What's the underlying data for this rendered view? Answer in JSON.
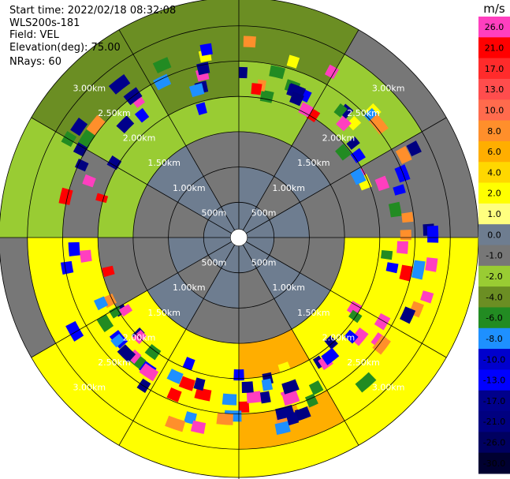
{
  "header": {
    "start_time": "Start time: 2022/02/18 08:32:08",
    "instrument": "WLS200s-181",
    "field": "Field: VEL",
    "elevation": "Elevation(deg): 75.00",
    "nrays": "NRays: 60"
  },
  "chart_data": {
    "type": "heatmap",
    "projection": "polar-ppi",
    "field": "VEL",
    "units": "m/s",
    "elevation_deg": 75.0,
    "n_rays": 60,
    "max_range_km": 3.4,
    "range_ring_labels": [
      "500m",
      "1.00km",
      "1.50km",
      "2.00km",
      "2.50km",
      "3.00km"
    ],
    "range_ring_values_km": [
      0.5,
      1.0,
      1.5,
      2.0,
      2.5,
      3.0
    ],
    "colorbar": {
      "unit": "m/s",
      "ticks": [
        "26.0",
        "21.0",
        "17.0",
        "13.0",
        "10.0",
        "8.0",
        "6.0",
        "4.0",
        "2.0",
        "1.0",
        "0.0",
        "-1.0",
        "-2.0",
        "-4.0",
        "-6.0",
        "-8.0",
        "-10.0",
        "-13.0",
        "-17.0",
        "-21.0",
        "-26.0",
        "-30.0"
      ],
      "colors": [
        "#ff3fbf",
        "#ff0000",
        "#ff2b2b",
        "#ff4d4d",
        "#ff6b4d",
        "#ff8f2b",
        "#ffae00",
        "#ffd700",
        "#ffff00",
        "#ffff7f",
        "#6e7d90",
        "#777777",
        "#99cc33",
        "#6b8e23",
        "#228b22",
        "#1e90ff",
        "#0000cd",
        "#0000ff",
        "#00008b",
        "#000080",
        "#000060",
        "#000030"
      ]
    },
    "rings": [
      {
        "r_km": 0.5,
        "colors": [
          "slate",
          "slate",
          "slate",
          "slate",
          "slate",
          "slate",
          "slate",
          "slate",
          "slate",
          "slate",
          "slate",
          "slate"
        ]
      },
      {
        "r_km": 1.0,
        "colors": [
          "slate",
          "gray",
          "slate",
          "gray",
          "slate",
          "gray",
          "slate",
          "gray",
          "slate",
          "gray",
          "slate",
          "gray"
        ]
      },
      {
        "r_km": 1.5,
        "colors": [
          "gray",
          "slate",
          "gray",
          "gray",
          "slate",
          "gray",
          "gray",
          "slate",
          "gray",
          "gray",
          "slate",
          "gray"
        ]
      },
      {
        "r_km": 2.0,
        "colors": [
          "lightgreen",
          "gray",
          "gray",
          "yellow",
          "yellow",
          "orange",
          "yellow",
          "yellow",
          "gray",
          "lightgreen",
          "lightgreen",
          "lightgreen"
        ]
      },
      {
        "r_km": 2.5,
        "colors": [
          "lightgreen",
          "lightgreen",
          "gray",
          "yellow",
          "yellow",
          "yellow",
          "yellow",
          "yellow",
          "yellow",
          "gray",
          "lightgreen",
          "olive"
        ]
      },
      {
        "r_km": 3.0,
        "colors": [
          "olive",
          "lightgreen",
          "gray",
          "yellow",
          "yellow",
          "orange",
          "yellow",
          "yellow",
          "yellow",
          "lightgreen",
          "olive",
          "olive"
        ]
      },
      {
        "r_km": 3.4,
        "colors": [
          "olive",
          "gray",
          "gray",
          "yellow",
          "yellow",
          "yellow",
          "yellow",
          "yellow",
          "gray",
          "lightgreen",
          "olive",
          "olive"
        ]
      }
    ],
    "color_keys": {
      "slate": "#6e7d90",
      "gray": "#777777",
      "lightgreen": "#99cc33",
      "olive": "#6b8e23",
      "yellow": "#ffff00",
      "orange": "#ffae00"
    }
  }
}
